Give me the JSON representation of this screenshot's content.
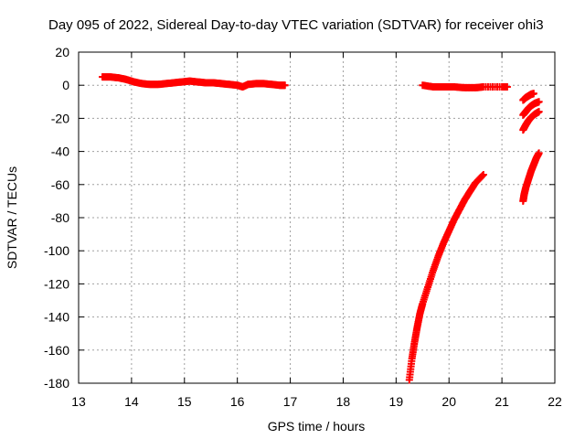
{
  "chart_data": {
    "type": "scatter",
    "title": "Day 095 of 2022, Sidereal Day-to-day VTEC variation (SDTVAR) for receiver ohi3",
    "xlabel": "GPS time / hours",
    "ylabel": "SDTVAR / TECUs",
    "xlim": [
      13,
      22
    ],
    "ylim": [
      -180,
      20
    ],
    "x_ticks": [
      "13",
      "14",
      "15",
      "16",
      "17",
      "18",
      "19",
      "20",
      "21",
      "22"
    ],
    "y_ticks": [
      "20",
      "0",
      "-20",
      "-40",
      "-60",
      "-80",
      "-100",
      "-120",
      "-140",
      "-160",
      "-180"
    ],
    "grid": true,
    "marker": "+",
    "series_color": "#ff0000",
    "series": [
      {
        "points": [
          [
            13.45,
            5
          ],
          [
            13.6,
            5
          ],
          [
            13.75,
            4.5
          ],
          [
            13.9,
            3.5
          ],
          [
            14.05,
            2
          ],
          [
            14.2,
            1
          ],
          [
            14.35,
            0.5
          ],
          [
            14.5,
            0.5
          ],
          [
            14.65,
            1
          ],
          [
            14.8,
            1.5
          ],
          [
            14.95,
            2
          ],
          [
            15.1,
            2.5
          ],
          [
            15.25,
            2
          ],
          [
            15.4,
            1.5
          ],
          [
            15.55,
            1.5
          ],
          [
            15.7,
            1
          ],
          [
            15.85,
            0.5
          ],
          [
            16.0,
            0
          ],
          [
            16.1,
            -1
          ],
          [
            16.2,
            0.5
          ],
          [
            16.35,
            1
          ],
          [
            16.5,
            1
          ],
          [
            16.65,
            0.5
          ],
          [
            16.8,
            0
          ],
          [
            16.9,
            0
          ]
        ]
      },
      {
        "points": [
          [
            19.5,
            0
          ],
          [
            19.7,
            -1
          ],
          [
            19.9,
            -1
          ],
          [
            20.1,
            -1
          ],
          [
            20.3,
            -1.5
          ],
          [
            20.5,
            -1.5
          ],
          [
            20.65,
            -1
          ],
          [
            21.0,
            -1
          ],
          [
            21.1,
            -1
          ]
        ]
      },
      {
        "points": [
          [
            19.25,
            -178
          ],
          [
            19.3,
            -165
          ],
          [
            19.35,
            -155
          ],
          [
            19.4,
            -146
          ],
          [
            19.45,
            -138
          ],
          [
            19.5,
            -132
          ],
          [
            19.6,
            -122
          ],
          [
            19.7,
            -112
          ],
          [
            19.8,
            -103
          ],
          [
            19.9,
            -95
          ],
          [
            20.0,
            -88
          ],
          [
            20.1,
            -81
          ],
          [
            20.2,
            -75
          ],
          [
            20.3,
            -69
          ],
          [
            20.4,
            -64
          ],
          [
            20.5,
            -59
          ],
          [
            20.65,
            -54
          ]
        ]
      },
      {
        "points": [
          [
            21.4,
            -9
          ],
          [
            21.45,
            -7.5
          ],
          [
            21.5,
            -6.5
          ],
          [
            21.55,
            -5.5
          ],
          [
            21.6,
            -5
          ]
        ]
      },
      {
        "points": [
          [
            21.4,
            -18
          ],
          [
            21.45,
            -16
          ],
          [
            21.5,
            -14
          ],
          [
            21.55,
            -12.5
          ],
          [
            21.62,
            -11
          ],
          [
            21.7,
            -10
          ]
        ]
      },
      {
        "points": [
          [
            21.4,
            -27
          ],
          [
            21.45,
            -24
          ],
          [
            21.5,
            -21.5
          ],
          [
            21.55,
            -19.5
          ],
          [
            21.62,
            -17.5
          ],
          [
            21.7,
            -16
          ]
        ]
      },
      {
        "points": [
          [
            21.4,
            -70
          ],
          [
            21.42,
            -66
          ],
          [
            21.45,
            -62
          ],
          [
            21.5,
            -57
          ],
          [
            21.55,
            -52
          ],
          [
            21.6,
            -48
          ],
          [
            21.65,
            -44
          ],
          [
            21.7,
            -41
          ]
        ]
      }
    ]
  }
}
